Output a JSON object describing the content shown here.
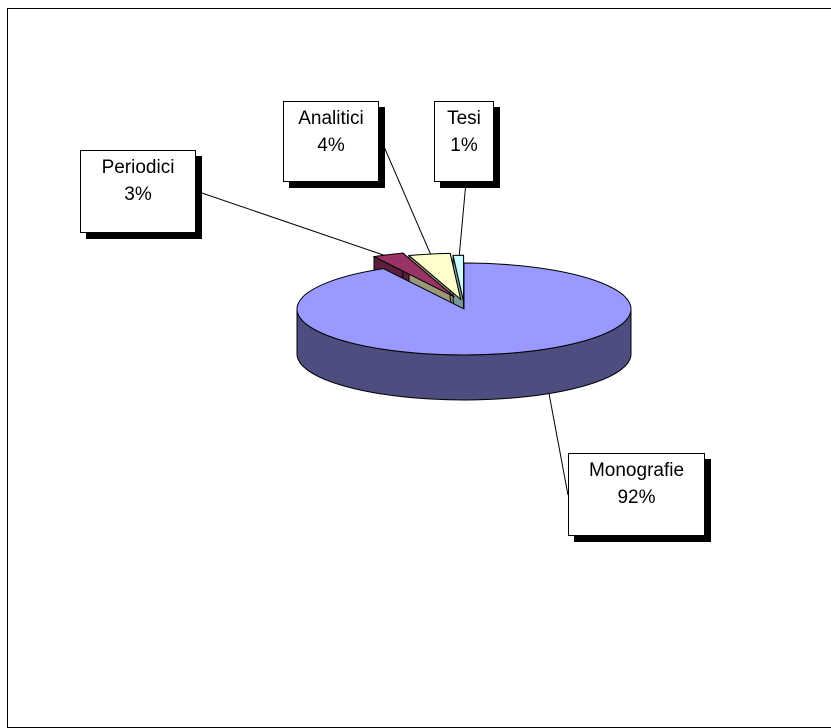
{
  "chart_data": {
    "type": "pie",
    "title": "",
    "style": "3d-exploded",
    "legend": "none",
    "slices": [
      {
        "category": "Monografie",
        "percent": 92,
        "percent_label": "92%",
        "color": "#9999ff"
      },
      {
        "category": "Periodici",
        "percent": 3,
        "percent_label": "3%",
        "color": "#993366"
      },
      {
        "category": "Analitici",
        "percent": 4,
        "percent_label": "4%",
        "color": "#ffffcc"
      },
      {
        "category": "Tesi",
        "percent": 1,
        "percent_label": "1%",
        "color": "#ccffff"
      }
    ]
  }
}
